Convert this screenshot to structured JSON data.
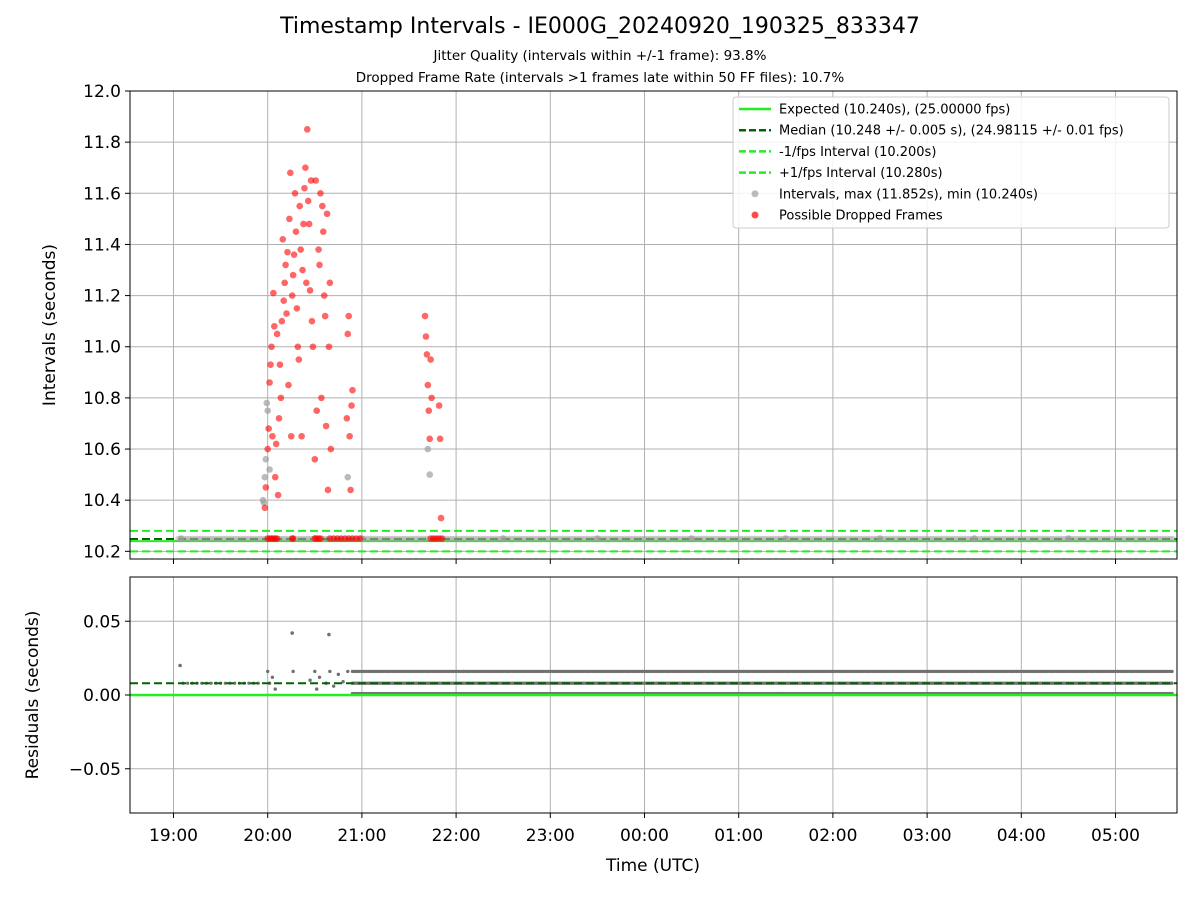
{
  "header": {
    "title": "Timestamp Intervals - IE000G_20240920_190325_833347",
    "subtitle_1": "Jitter Quality (intervals within +/-1 frame): 93.8%",
    "subtitle_2": "Dropped Frame Rate (intervals >1 frames late within 50 FF files): 10.7%"
  },
  "colors": {
    "expected": "#22ee22",
    "median": "#006400",
    "interval_bound": "#22ee22",
    "intervals": "#9e9e9e",
    "dropped": "#ff0000",
    "residual_points": "#707070",
    "grid": "#b0b0b0"
  },
  "chart_data": [
    {
      "type": "scatter",
      "ylabel": "Intervals (seconds)",
      "xlabel": "",
      "ylim": [
        10.17,
        12.0
      ],
      "xlim_hours": [
        18.75,
        29.62
      ],
      "yticks": [
        "10.2",
        "10.4",
        "10.6",
        "10.8",
        "11.0",
        "11.2",
        "11.4",
        "11.6",
        "11.8",
        "12.0"
      ],
      "grid": true,
      "legend_position": "top-right",
      "reference_lines": [
        {
          "name": "Expected (10.240s), (25.00000 fps)",
          "y": 10.24,
          "style": "solid"
        },
        {
          "name": "Median (10.248 +/- 0.005 s), (24.98115 +/- 0.01 fps)",
          "y": 10.248,
          "style": "dashed"
        },
        {
          "name": "-1/fps Interval (10.200s)",
          "y": 10.2,
          "style": "dashed"
        },
        {
          "name": "+1/fps Interval (10.280s)",
          "y": 10.28,
          "style": "dashed"
        }
      ],
      "series": [
        {
          "name": "Intervals, max (11.852s), min (10.240s)",
          "points": [
            [
              19.08,
              10.25
            ],
            [
              19.95,
              10.4
            ],
            [
              19.96,
              10.39
            ],
            [
              19.97,
              10.49
            ],
            [
              19.98,
              10.56
            ],
            [
              19.99,
              10.78
            ],
            [
              20.0,
              10.75
            ],
            [
              20.02,
              10.52
            ],
            [
              20.85,
              10.49
            ],
            [
              21.7,
              10.6
            ],
            [
              21.72,
              10.5
            ],
            [
              20.5,
              10.25
            ],
            [
              21.0,
              10.25
            ],
            [
              22.5,
              10.25
            ],
            [
              23.5,
              10.25
            ],
            [
              0.5,
              10.25
            ],
            [
              1.5,
              10.25
            ],
            [
              2.5,
              10.25
            ],
            [
              3.5,
              10.25
            ],
            [
              4.5,
              10.25
            ]
          ]
        },
        {
          "name": "Possible Dropped Frames",
          "points": [
            [
              19.97,
              10.37
            ],
            [
              19.98,
              10.45
            ],
            [
              20.0,
              10.6
            ],
            [
              20.01,
              10.68
            ],
            [
              20.02,
              10.86
            ],
            [
              20.03,
              10.93
            ],
            [
              20.04,
              11.0
            ],
            [
              20.05,
              10.65
            ],
            [
              20.06,
              11.21
            ],
            [
              20.07,
              11.08
            ],
            [
              20.08,
              10.49
            ],
            [
              20.09,
              10.62
            ],
            [
              20.1,
              11.05
            ],
            [
              20.11,
              10.42
            ],
            [
              20.12,
              10.72
            ],
            [
              20.13,
              10.93
            ],
            [
              20.14,
              10.8
            ],
            [
              20.15,
              11.1
            ],
            [
              20.16,
              11.42
            ],
            [
              20.17,
              11.18
            ],
            [
              20.18,
              11.25
            ],
            [
              20.19,
              11.32
            ],
            [
              20.2,
              11.13
            ],
            [
              20.21,
              11.37
            ],
            [
              20.22,
              10.85
            ],
            [
              20.23,
              11.5
            ],
            [
              20.24,
              11.68
            ],
            [
              20.25,
              10.65
            ],
            [
              20.26,
              11.2
            ],
            [
              20.27,
              11.28
            ],
            [
              20.28,
              11.36
            ],
            [
              20.29,
              11.6
            ],
            [
              20.3,
              11.45
            ],
            [
              20.31,
              11.15
            ],
            [
              20.32,
              11.0
            ],
            [
              20.33,
              10.95
            ],
            [
              20.34,
              11.55
            ],
            [
              20.35,
              11.38
            ],
            [
              20.36,
              10.65
            ],
            [
              20.37,
              11.3
            ],
            [
              20.38,
              11.48
            ],
            [
              20.39,
              11.62
            ],
            [
              20.4,
              11.7
            ],
            [
              20.41,
              11.25
            ],
            [
              20.42,
              11.85
            ],
            [
              20.43,
              11.57
            ],
            [
              20.44,
              11.48
            ],
            [
              20.45,
              11.22
            ],
            [
              20.46,
              11.65
            ],
            [
              20.47,
              11.1
            ],
            [
              20.48,
              11.0
            ],
            [
              20.5,
              10.56
            ],
            [
              20.51,
              11.65
            ],
            [
              20.52,
              10.75
            ],
            [
              20.54,
              11.38
            ],
            [
              20.55,
              11.32
            ],
            [
              20.56,
              11.6
            ],
            [
              20.57,
              10.8
            ],
            [
              20.58,
              11.55
            ],
            [
              20.59,
              11.45
            ],
            [
              20.6,
              11.2
            ],
            [
              20.61,
              11.12
            ],
            [
              20.62,
              10.69
            ],
            [
              20.63,
              11.52
            ],
            [
              20.64,
              10.44
            ],
            [
              20.65,
              11.0
            ],
            [
              20.66,
              11.25
            ],
            [
              20.67,
              10.6
            ],
            [
              20.84,
              10.72
            ],
            [
              20.85,
              11.05
            ],
            [
              20.86,
              11.12
            ],
            [
              20.87,
              10.65
            ],
            [
              20.88,
              10.44
            ],
            [
              20.89,
              10.77
            ],
            [
              20.9,
              10.83
            ],
            [
              21.67,
              11.12
            ],
            [
              21.68,
              11.04
            ],
            [
              21.69,
              10.97
            ],
            [
              21.7,
              10.85
            ],
            [
              21.71,
              10.75
            ],
            [
              21.72,
              10.64
            ],
            [
              21.73,
              10.95
            ],
            [
              21.74,
              10.8
            ],
            [
              21.82,
              10.77
            ],
            [
              21.83,
              10.64
            ],
            [
              21.84,
              10.33
            ],
            [
              20.0,
              10.25
            ],
            [
              20.02,
              10.25
            ],
            [
              20.04,
              10.25
            ],
            [
              20.06,
              10.25
            ],
            [
              20.08,
              10.25
            ],
            [
              20.1,
              10.25
            ],
            [
              20.26,
              10.25
            ],
            [
              20.27,
              10.25
            ],
            [
              20.5,
              10.25
            ],
            [
              20.52,
              10.25
            ],
            [
              20.54,
              10.25
            ],
            [
              20.56,
              10.25
            ],
            [
              20.66,
              10.25
            ],
            [
              20.7,
              10.25
            ],
            [
              20.74,
              10.25
            ],
            [
              20.78,
              10.25
            ],
            [
              20.82,
              10.25
            ],
            [
              20.86,
              10.25
            ],
            [
              20.9,
              10.25
            ],
            [
              20.94,
              10.25
            ],
            [
              20.98,
              10.25
            ],
            [
              21.73,
              10.25
            ],
            [
              21.76,
              10.25
            ],
            [
              21.79,
              10.25
            ],
            [
              21.82,
              10.25
            ],
            [
              21.85,
              10.25
            ]
          ]
        }
      ]
    },
    {
      "type": "scatter",
      "ylabel": "Residuals (seconds)",
      "xlabel": "Time (UTC)",
      "ylim": [
        -0.08,
        0.08
      ],
      "yticks": [
        "−0.05",
        "0.00",
        "0.05"
      ],
      "xtick_labels": [
        "19:00",
        "20:00",
        "21:00",
        "22:00",
        "23:00",
        "00:00",
        "01:00",
        "02:00",
        "03:00",
        "04:00",
        "05:00"
      ],
      "grid": true,
      "reference_lines": [
        {
          "name": "Expected",
          "y": 0.0,
          "style": "solid"
        },
        {
          "name": "Median",
          "y": 0.008,
          "style": "dashed"
        }
      ],
      "residual_notes": {
        "outliers": [
          [
            20.26,
            0.042
          ],
          [
            20.65,
            0.041
          ],
          [
            19.07,
            0.02
          ]
        ],
        "band_levels": [
          0.0,
          0.008,
          0.016
        ],
        "band_start_hour": 20.9
      }
    }
  ],
  "legend": [
    {
      "label": "Expected (10.240s), (25.00000 fps)",
      "swatch": "line-solid-light"
    },
    {
      "label": "Median (10.248 +/- 0.005 s), (24.98115 +/- 0.01 fps)",
      "swatch": "line-dashed-dark"
    },
    {
      "label": "-1/fps Interval (10.200s)",
      "swatch": "line-dashed-light"
    },
    {
      "label": "+1/fps Interval (10.280s)",
      "swatch": "line-dashed-light"
    },
    {
      "label": "Intervals, max (11.852s), min (10.240s)",
      "swatch": "dot-gray"
    },
    {
      "label": "Possible Dropped Frames",
      "swatch": "dot-red"
    }
  ]
}
